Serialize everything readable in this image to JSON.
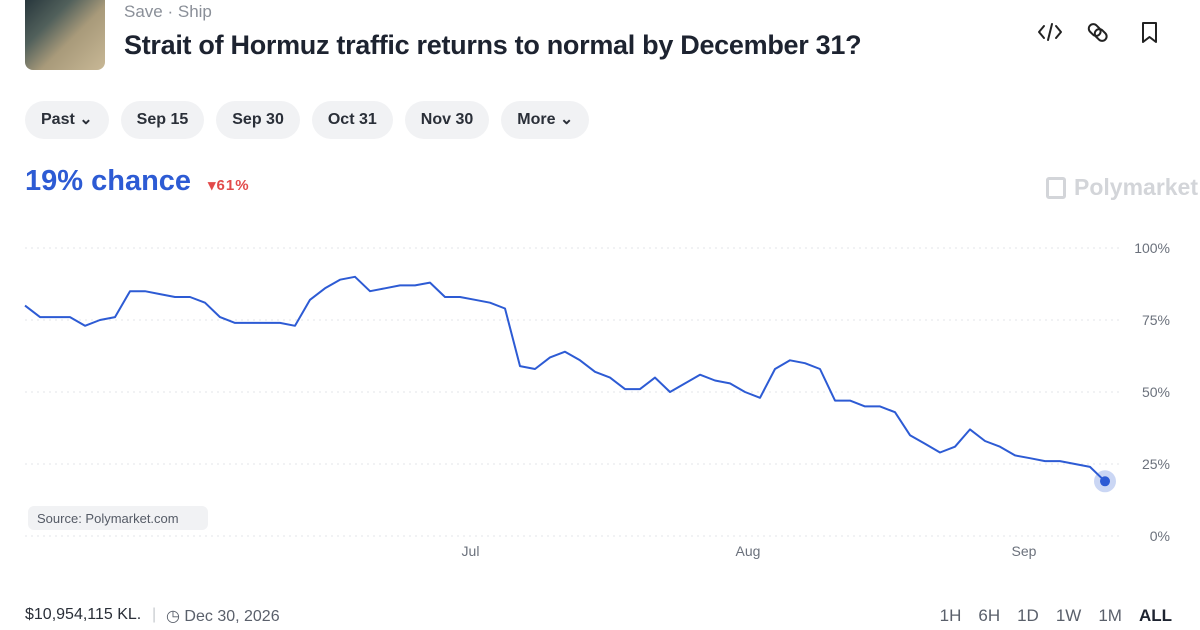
{
  "header": {
    "links": [
      "Save",
      "Ship"
    ],
    "title": "Strait of Hormuz traffic returns to normal by December 31?"
  },
  "tabs": [
    "Past",
    "Sep 15",
    "Sep 30",
    "Oct 31",
    "Nov 30",
    "More"
  ],
  "summary": {
    "chance": "19% chance",
    "change": "61%",
    "brand": "Polymarket"
  },
  "chart_data": {
    "type": "line",
    "color": "#2d5bd4",
    "values": [
      80,
      76,
      76,
      76,
      73,
      75,
      76,
      85,
      85,
      84,
      83,
      83,
      81,
      76,
      74,
      74,
      74,
      74,
      73,
      82,
      86,
      89,
      90,
      85,
      86,
      87,
      87,
      88,
      83,
      83,
      82,
      81,
      79,
      59,
      58,
      62,
      64,
      61,
      57,
      55,
      51,
      51,
      55,
      50,
      53,
      56,
      54,
      53,
      50,
      48,
      58,
      61,
      60,
      58,
      47,
      47,
      45,
      45,
      43,
      35,
      32,
      29,
      31,
      37,
      33,
      31,
      28,
      27,
      26,
      26,
      25,
      24,
      19
    ],
    "xlim": [
      0,
      72
    ],
    "xticks": [
      {
        "value": 29.7,
        "label": "Jul"
      },
      {
        "value": 48.2,
        "label": "Aug"
      },
      {
        "value": 66.6,
        "label": "Sep"
      }
    ],
    "ylim": [
      0,
      100
    ],
    "yticks": [
      {
        "value": 0,
        "label": "0%"
      },
      {
        "value": 25,
        "label": "25%"
      },
      {
        "value": 50,
        "label": "50%"
      },
      {
        "value": 75,
        "label": "75%"
      },
      {
        "value": 100,
        "label": "100%"
      }
    ],
    "grid": true,
    "source": "Source: Polymarket.com"
  },
  "footer": {
    "volume": "$10,954,115 KL.",
    "end_date": "Dec 30, 2026",
    "ranges": [
      "1H",
      "6H",
      "1D",
      "1W",
      "1M",
      "ALL"
    ]
  }
}
